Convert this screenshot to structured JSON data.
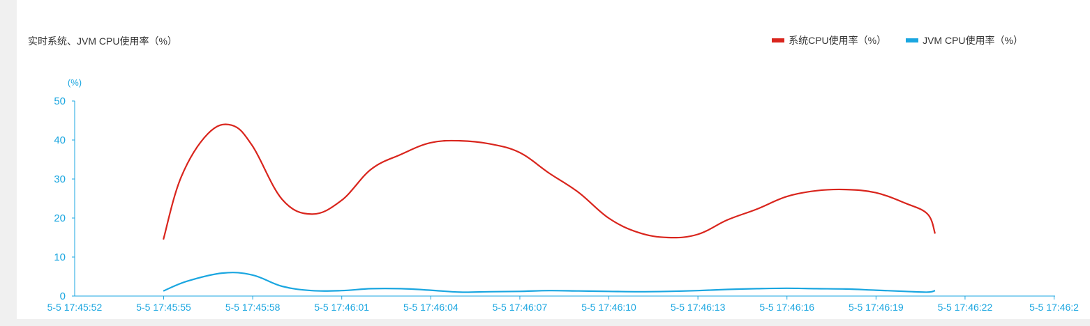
{
  "chart_data": {
    "type": "line",
    "title": "实时系统、JVM CPU使用率（%）",
    "ylabel": "(%)",
    "xlabel": "",
    "ylim": [
      0,
      50
    ],
    "yticks": [
      "0",
      "10",
      "20",
      "30",
      "40",
      "50"
    ],
    "categories": [
      "5-5 17:45:52",
      "5-5 17:45:55",
      "5-5 17:45:58",
      "5-5 17:46:01",
      "5-5 17:46:04",
      "5-5 17:46:07",
      "5-5 17:46:10",
      "5-5 17:46:13",
      "5-5 17:46:16",
      "5-5 17:46:19",
      "5-5 17:46:22",
      "5-5 17:46:2"
    ],
    "legend_position": "top-right",
    "grid": false,
    "series": [
      {
        "name": "系统CPU使用率（%）",
        "color": "#d9251d",
        "points": [
          [
            3.0,
            14.5
          ],
          [
            3.6,
            30.5
          ],
          [
            4.5,
            41.6
          ],
          [
            5.3,
            43.8
          ],
          [
            6.0,
            38.5
          ],
          [
            7.0,
            24.8
          ],
          [
            8.0,
            21.0
          ],
          [
            9.0,
            24.5
          ],
          [
            10.0,
            32.5
          ],
          [
            11.0,
            36.3
          ],
          [
            12.0,
            39.3
          ],
          [
            13.0,
            39.8
          ],
          [
            14.0,
            39.0
          ],
          [
            15.0,
            36.8
          ],
          [
            16.0,
            31.5
          ],
          [
            17.0,
            26.5
          ],
          [
            18.0,
            20.0
          ],
          [
            19.0,
            16.3
          ],
          [
            20.0,
            15.0
          ],
          [
            21.0,
            15.8
          ],
          [
            22.0,
            19.5
          ],
          [
            23.0,
            22.3
          ],
          [
            24.0,
            25.5
          ],
          [
            25.0,
            27.0
          ],
          [
            26.0,
            27.3
          ],
          [
            27.0,
            26.5
          ],
          [
            28.0,
            23.8
          ],
          [
            28.75,
            21.0
          ],
          [
            29.0,
            16.0
          ]
        ]
      },
      {
        "name": "JVM CPU使用率（%）",
        "color": "#1aa6e0",
        "points": [
          [
            3.0,
            1.3
          ],
          [
            3.8,
            3.8
          ],
          [
            5.0,
            5.9
          ],
          [
            6.0,
            5.4
          ],
          [
            7.0,
            2.5
          ],
          [
            8.0,
            1.4
          ],
          [
            9.0,
            1.4
          ],
          [
            10.0,
            1.9
          ],
          [
            11.0,
            1.9
          ],
          [
            12.0,
            1.5
          ],
          [
            13.0,
            1.0
          ],
          [
            14.0,
            1.1
          ],
          [
            15.0,
            1.2
          ],
          [
            16.0,
            1.4
          ],
          [
            17.0,
            1.3
          ],
          [
            18.0,
            1.2
          ],
          [
            19.0,
            1.1
          ],
          [
            20.0,
            1.2
          ],
          [
            21.0,
            1.4
          ],
          [
            22.0,
            1.7
          ],
          [
            23.0,
            1.9
          ],
          [
            24.0,
            2.0
          ],
          [
            25.0,
            1.9
          ],
          [
            26.0,
            1.8
          ],
          [
            27.0,
            1.5
          ],
          [
            28.0,
            1.2
          ],
          [
            28.75,
            1.0
          ],
          [
            29.0,
            1.4
          ]
        ]
      }
    ]
  }
}
